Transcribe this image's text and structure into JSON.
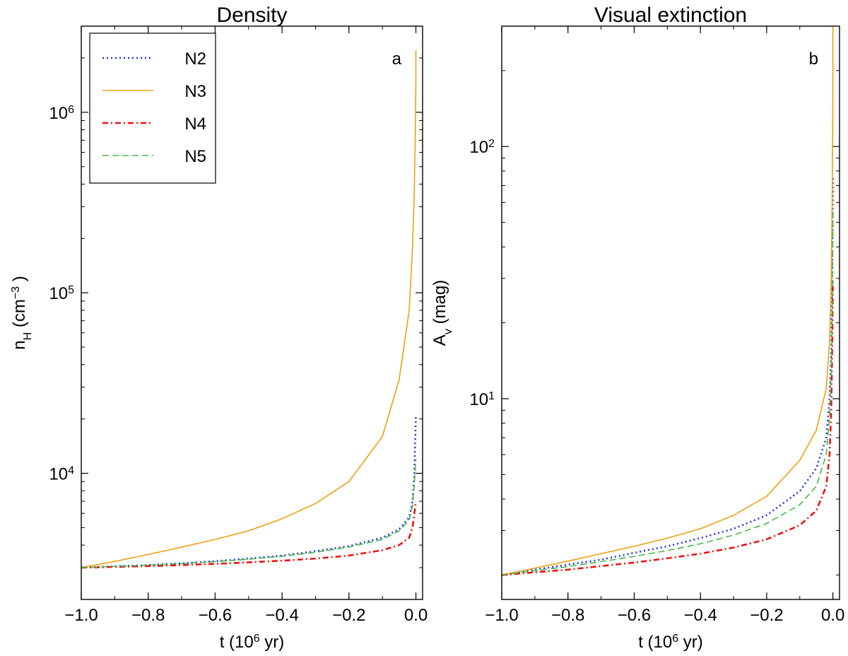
{
  "chart_data": [
    {
      "type": "line",
      "id": "density",
      "title": "Density",
      "panel_letter": "a",
      "xlabel": {
        "base": "t (10",
        "sup": "6",
        "tail": "   yr)"
      },
      "ylabel": {
        "base": "n",
        "sub": "H",
        "mid": " (cm",
        "sup": "−3",
        "tail": " )"
      },
      "xscale": "linear",
      "yscale": "log",
      "xlim": [
        -1.0,
        0.02
      ],
      "ylim": [
        2000,
        3000000
      ],
      "xticks": [
        -1.0,
        -0.8,
        -0.6,
        -0.4,
        -0.2,
        0.0
      ],
      "xtick_labels": [
        "−1.0",
        "−0.8",
        "−0.6",
        "−0.4",
        "−0.2",
        "0.0"
      ],
      "yticks": [
        10000,
        100000,
        1000000
      ],
      "ytick_labels": [
        {
          "base": "10",
          "sup": "4"
        },
        {
          "base": "10",
          "sup": "5"
        },
        {
          "base": "10",
          "sup": "6"
        }
      ],
      "legend": {
        "position": "upper-left",
        "entries": [
          "N2",
          "N3",
          "N4",
          "N5"
        ]
      },
      "series": [
        {
          "name": "N2",
          "color": "#2233dd",
          "style": "dotted",
          "x": [
            -1.0,
            -0.9,
            -0.8,
            -0.7,
            -0.6,
            -0.5,
            -0.4,
            -0.3,
            -0.2,
            -0.1,
            -0.05,
            -0.02,
            -0.01,
            -0.005,
            0.0
          ],
          "y": [
            3000,
            3050,
            3100,
            3170,
            3260,
            3370,
            3500,
            3700,
            3950,
            4400,
            4900,
            5700,
            7000,
            9500,
            21000
          ]
        },
        {
          "name": "N3",
          "color": "#f0a010",
          "style": "solid",
          "x": [
            -1.0,
            -0.9,
            -0.8,
            -0.7,
            -0.6,
            -0.5,
            -0.4,
            -0.3,
            -0.2,
            -0.1,
            -0.05,
            -0.02,
            -0.01,
            -0.005,
            -0.002,
            0.0,
            0.0
          ],
          "y": [
            3000,
            3250,
            3550,
            3900,
            4300,
            4800,
            5600,
            6800,
            9000,
            16000,
            33000,
            80000,
            180000,
            350000,
            700000,
            1500000,
            2200000
          ]
        },
        {
          "name": "N4",
          "color": "#ee1111",
          "style": "dashdot",
          "x": [
            -1.0,
            -0.9,
            -0.8,
            -0.7,
            -0.6,
            -0.5,
            -0.4,
            -0.3,
            -0.2,
            -0.1,
            -0.05,
            -0.02,
            -0.01,
            -0.005,
            0.0
          ],
          "y": [
            3000,
            3030,
            3060,
            3100,
            3150,
            3210,
            3280,
            3370,
            3500,
            3750,
            4000,
            4400,
            5000,
            5900,
            7000
          ]
        },
        {
          "name": "N5",
          "color": "#44bb44",
          "style": "dashed",
          "x": [
            -1.0,
            -0.9,
            -0.8,
            -0.7,
            -0.6,
            -0.5,
            -0.4,
            -0.3,
            -0.2,
            -0.1,
            -0.05,
            -0.02,
            -0.01,
            -0.005,
            0.0
          ],
          "y": [
            3000,
            3045,
            3095,
            3160,
            3240,
            3340,
            3470,
            3650,
            3900,
            4300,
            4800,
            5500,
            6600,
            8500,
            12000
          ]
        }
      ]
    },
    {
      "type": "line",
      "id": "extinction",
      "title": "Visual extinction",
      "panel_letter": "b",
      "xlabel": {
        "base": "t (10",
        "sup": "6",
        "tail": "   yr)"
      },
      "ylabel": {
        "base": "A",
        "sub": "v",
        "mid": " (mag)",
        "sup": "",
        "tail": ""
      },
      "xscale": "linear",
      "yscale": "log",
      "xlim": [
        -1.0,
        0.02
      ],
      "ylim": [
        1.6,
        300
      ],
      "xticks": [
        -1.0,
        -0.8,
        -0.6,
        -0.4,
        -0.2,
        0.0
      ],
      "xtick_labels": [
        "−1.0",
        "−0.8",
        "−0.6",
        "−0.4",
        "−0.2",
        "0.0"
      ],
      "yticks": [
        10,
        100
      ],
      "ytick_labels": [
        {
          "base": "10",
          "sup": "1"
        },
        {
          "base": "10",
          "sup": "2"
        }
      ],
      "series": [
        {
          "name": "N2",
          "color": "#2233dd",
          "style": "dotted",
          "x": [
            -1.0,
            -0.9,
            -0.8,
            -0.7,
            -0.6,
            -0.5,
            -0.4,
            -0.3,
            -0.2,
            -0.1,
            -0.05,
            -0.02,
            -0.01,
            -0.005,
            -0.002,
            0.0
          ],
          "y": [
            2.0,
            2.1,
            2.2,
            2.3,
            2.45,
            2.6,
            2.8,
            3.05,
            3.45,
            4.3,
            5.3,
            7.0,
            10.0,
            16.0,
            30.0,
            75.0
          ]
        },
        {
          "name": "N3",
          "color": "#f0a010",
          "style": "solid",
          "x": [
            -1.0,
            -0.9,
            -0.8,
            -0.7,
            -0.6,
            -0.5,
            -0.4,
            -0.3,
            -0.2,
            -0.1,
            -0.05,
            -0.02,
            -0.01,
            -0.005,
            -0.002,
            0.0,
            0.0
          ],
          "y": [
            2.0,
            2.13,
            2.27,
            2.43,
            2.6,
            2.8,
            3.05,
            3.45,
            4.1,
            5.7,
            7.5,
            11.0,
            17.0,
            30.0,
            65.0,
            160.0,
            300.0
          ]
        },
        {
          "name": "N4",
          "color": "#ee1111",
          "style": "dashdot",
          "x": [
            -1.0,
            -0.9,
            -0.8,
            -0.7,
            -0.6,
            -0.5,
            -0.4,
            -0.3,
            -0.2,
            -0.1,
            -0.05,
            -0.02,
            -0.01,
            -0.005,
            -0.002,
            0.0
          ],
          "y": [
            2.0,
            2.05,
            2.1,
            2.17,
            2.24,
            2.33,
            2.43,
            2.57,
            2.77,
            3.15,
            3.6,
            4.5,
            6.0,
            9.0,
            16.0,
            30.0
          ]
        },
        {
          "name": "N5",
          "color": "#44bb44",
          "style": "dashed",
          "x": [
            -1.0,
            -0.9,
            -0.8,
            -0.7,
            -0.6,
            -0.5,
            -0.4,
            -0.3,
            -0.2,
            -0.1,
            -0.05,
            -0.02,
            -0.01,
            -0.005,
            -0.002,
            0.0
          ],
          "y": [
            2.0,
            2.08,
            2.16,
            2.26,
            2.37,
            2.5,
            2.66,
            2.88,
            3.2,
            3.8,
            4.5,
            6.0,
            8.5,
            13.0,
            24.0,
            55.0
          ]
        }
      ]
    }
  ],
  "colors": {
    "axes": "#000000",
    "background": "#ffffff"
  }
}
